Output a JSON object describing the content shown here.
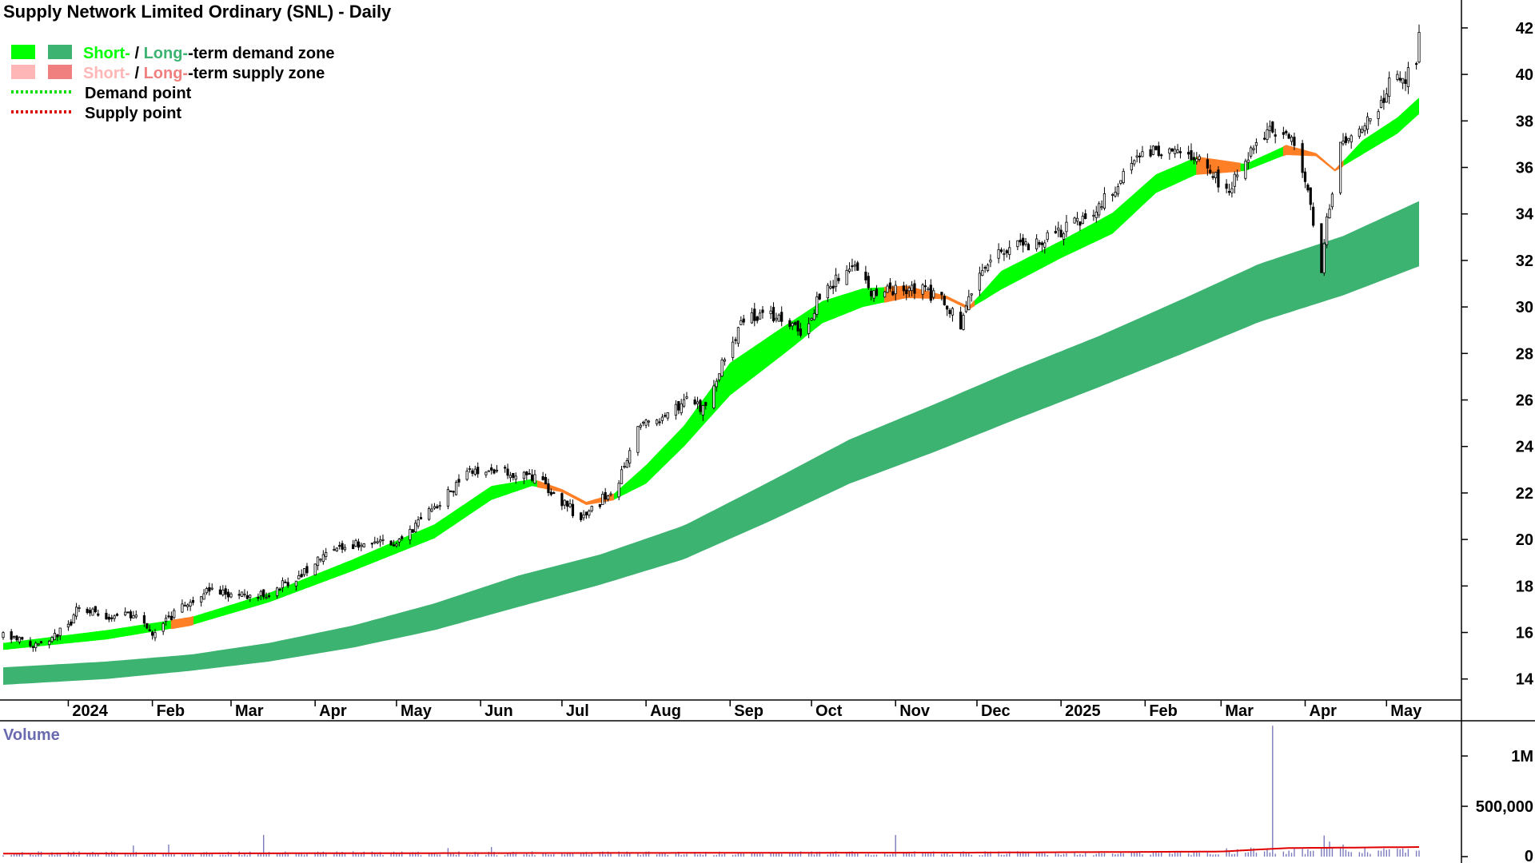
{
  "colors": {
    "short_demand": "#00ff00",
    "long_demand": "#3cb371",
    "short_supply": "#ffb6b6",
    "long_supply": "#f08080",
    "supply_ribbon": "#ff7f27",
    "candle": "#000000",
    "volume_bar": "#7b7bbd",
    "volume_avg": "#e00000",
    "volume_title": "#6a6ab0",
    "demand_point": "#00dd00",
    "supply_point": "#dd0000",
    "axis": "#000000"
  },
  "legend": [
    {
      "swatch_left": "short_demand",
      "swatch_right": "long_demand",
      "parts": [
        {
          "text": "Short-",
          "color": "short_demand"
        },
        {
          "text": " / ",
          "color": "black"
        },
        {
          "text": "Long-",
          "color": "long_demand"
        },
        {
          "text": "-term demand zone",
          "color": "black"
        }
      ]
    },
    {
      "swatch_left": "short_supply",
      "swatch_right": "long_supply",
      "parts": [
        {
          "text": "Short-",
          "color": "short_supply"
        },
        {
          "text": " / ",
          "color": "black"
        },
        {
          "text": "Long-",
          "color": "long_supply"
        },
        {
          "text": "-term supply zone",
          "color": "black"
        }
      ]
    },
    {
      "dotted": "demand_point",
      "parts": [
        {
          "text": "Demand point",
          "color": "black"
        }
      ]
    },
    {
      "dotted": "supply_point",
      "parts": [
        {
          "text": "Supply point",
          "color": "black"
        }
      ]
    }
  ],
  "chart_data": {
    "type": "candlestick",
    "title": "Supply Network Limited Ordinary (SNL) - Daily",
    "x_start": "2023-12-08",
    "x_end": "2025-05-13",
    "x_ticks": [
      {
        "label": "2024",
        "date": "2024-01-01"
      },
      {
        "label": "Feb",
        "date": "2024-02-01"
      },
      {
        "label": "Mar",
        "date": "2024-03-01"
      },
      {
        "label": "Apr",
        "date": "2024-04-01"
      },
      {
        "label": "May",
        "date": "2024-05-01"
      },
      {
        "label": "Jun",
        "date": "2024-06-01"
      },
      {
        "label": "Jul",
        "date": "2024-07-01"
      },
      {
        "label": "Aug",
        "date": "2024-08-01"
      },
      {
        "label": "Sep",
        "date": "2024-09-01"
      },
      {
        "label": "Oct",
        "date": "2024-10-01"
      },
      {
        "label": "Nov",
        "date": "2024-11-01"
      },
      {
        "label": "Dec",
        "date": "2024-12-01"
      },
      {
        "label": "2025",
        "date": "2025-01-01"
      },
      {
        "label": "Feb",
        "date": "2025-02-01"
      },
      {
        "label": "Mar",
        "date": "2025-03-01"
      },
      {
        "label": "Apr",
        "date": "2025-04-01"
      },
      {
        "label": "May",
        "date": "2025-05-01"
      }
    ],
    "y_axis": {
      "ylim": [
        13.2,
        43.2
      ],
      "ticks": [
        14,
        16,
        18,
        20,
        22,
        24,
        26,
        28,
        30,
        32,
        34,
        36,
        38,
        40,
        42
      ]
    },
    "price_path": [
      [
        "2023-12-08",
        15.9
      ],
      [
        "2023-12-20",
        15.5
      ],
      [
        "2024-01-01",
        16.2
      ],
      [
        "2024-01-05",
        17.2
      ],
      [
        "2024-01-15",
        16.6
      ],
      [
        "2024-01-25",
        16.8
      ],
      [
        "2024-02-01",
        16.0
      ],
      [
        "2024-02-10",
        16.9
      ],
      [
        "2024-02-20",
        17.8
      ],
      [
        "2024-03-01",
        17.6
      ],
      [
        "2024-03-15",
        17.7
      ],
      [
        "2024-03-25",
        18.4
      ],
      [
        "2024-04-05",
        19.4
      ],
      [
        "2024-04-15",
        19.8
      ],
      [
        "2024-05-01",
        19.9
      ],
      [
        "2024-05-10",
        20.8
      ],
      [
        "2024-05-20",
        22.0
      ],
      [
        "2024-05-28",
        23.0
      ],
      [
        "2024-06-05",
        23.1
      ],
      [
        "2024-06-20",
        22.7
      ],
      [
        "2024-06-28",
        22.0
      ],
      [
        "2024-07-08",
        20.9
      ],
      [
        "2024-07-15",
        21.6
      ],
      [
        "2024-07-22",
        22.6
      ],
      [
        "2024-07-29",
        24.8
      ],
      [
        "2024-08-08",
        25.2
      ],
      [
        "2024-08-15",
        26.0
      ],
      [
        "2024-08-22",
        25.6
      ],
      [
        "2024-08-29",
        27.5
      ],
      [
        "2024-09-05",
        29.3
      ],
      [
        "2024-09-12",
        29.7
      ],
      [
        "2024-09-20",
        29.5
      ],
      [
        "2024-09-27",
        28.8
      ],
      [
        "2024-10-03",
        30.2
      ],
      [
        "2024-10-10",
        31.2
      ],
      [
        "2024-10-17",
        31.8
      ],
      [
        "2024-10-24",
        30.5
      ],
      [
        "2024-11-01",
        30.7
      ],
      [
        "2024-11-10",
        30.8
      ],
      [
        "2024-11-18",
        30.3
      ],
      [
        "2024-11-25",
        29.3
      ],
      [
        "2024-12-01",
        31.5
      ],
      [
        "2024-12-08",
        32.5
      ],
      [
        "2024-12-20",
        32.6
      ],
      [
        "2025-01-01",
        33.3
      ],
      [
        "2025-01-10",
        33.8
      ],
      [
        "2025-01-20",
        35.0
      ],
      [
        "2025-02-01",
        36.7
      ],
      [
        "2025-02-10",
        36.8
      ],
      [
        "2025-02-20",
        36.6
      ],
      [
        "2025-03-03",
        35.0
      ],
      [
        "2025-03-10",
        36.3
      ],
      [
        "2025-03-20",
        37.7
      ],
      [
        "2025-03-28",
        37.0
      ],
      [
        "2025-04-03",
        34.5
      ],
      [
        "2025-04-07",
        31.6
      ],
      [
        "2025-04-09",
        33.9
      ],
      [
        "2025-04-14",
        36.9
      ],
      [
        "2025-04-20",
        37.8
      ],
      [
        "2025-04-28",
        38.2
      ],
      [
        "2025-05-02",
        39.7
      ],
      [
        "2025-05-08",
        39.9
      ],
      [
        "2025-05-12",
        40.5
      ],
      [
        "2025-05-13",
        41.5
      ]
    ],
    "short_zone_upper": [
      [
        "2023-12-08",
        15.55
      ],
      [
        "2024-01-15",
        16.1
      ],
      [
        "2024-02-15",
        16.65
      ],
      [
        "2024-03-15",
        17.7
      ],
      [
        "2024-04-15",
        19.15
      ],
      [
        "2024-05-15",
        20.65
      ],
      [
        "2024-06-05",
        22.3
      ],
      [
        "2024-06-20",
        22.6
      ],
      [
        "2024-07-01",
        22.15
      ],
      [
        "2024-07-10",
        21.6
      ],
      [
        "2024-07-20",
        21.95
      ],
      [
        "2024-08-01",
        23.2
      ],
      [
        "2024-08-15",
        24.9
      ],
      [
        "2024-09-01",
        27.6
      ],
      [
        "2024-09-20",
        29.1
      ],
      [
        "2024-10-05",
        30.25
      ],
      [
        "2024-10-20",
        30.8
      ],
      [
        "2024-11-05",
        30.9
      ],
      [
        "2024-11-20",
        30.45
      ],
      [
        "2024-11-28",
        30.0
      ],
      [
        "2024-12-10",
        31.55
      ],
      [
        "2025-01-01",
        32.85
      ],
      [
        "2025-01-20",
        34.05
      ],
      [
        "2025-02-05",
        35.7
      ],
      [
        "2025-02-20",
        36.45
      ],
      [
        "2025-03-10",
        36.15
      ],
      [
        "2025-03-25",
        36.95
      ],
      [
        "2025-04-05",
        36.6
      ],
      [
        "2025-04-12",
        35.9
      ],
      [
        "2025-04-22",
        37.15
      ],
      [
        "2025-05-05",
        38.15
      ],
      [
        "2025-05-13",
        39.0
      ]
    ],
    "short_zone_lower": [
      [
        "2023-12-08",
        15.25
      ],
      [
        "2024-01-15",
        15.7
      ],
      [
        "2024-02-15",
        16.3
      ],
      [
        "2024-03-15",
        17.3
      ],
      [
        "2024-04-15",
        18.65
      ],
      [
        "2024-05-15",
        20.05
      ],
      [
        "2024-06-05",
        21.7
      ],
      [
        "2024-06-20",
        22.3
      ],
      [
        "2024-07-01",
        22.05
      ],
      [
        "2024-07-10",
        21.5
      ],
      [
        "2024-07-20",
        21.7
      ],
      [
        "2024-08-01",
        22.4
      ],
      [
        "2024-08-15",
        24.0
      ],
      [
        "2024-09-01",
        26.2
      ],
      [
        "2024-09-20",
        27.9
      ],
      [
        "2024-10-05",
        29.3
      ],
      [
        "2024-10-20",
        30.0
      ],
      [
        "2024-11-05",
        30.4
      ],
      [
        "2024-11-20",
        30.35
      ],
      [
        "2024-11-28",
        29.9
      ],
      [
        "2024-12-10",
        30.75
      ],
      [
        "2025-01-01",
        32.1
      ],
      [
        "2025-01-20",
        33.15
      ],
      [
        "2025-02-05",
        34.9
      ],
      [
        "2025-02-20",
        35.7
      ],
      [
        "2025-03-10",
        35.85
      ],
      [
        "2025-03-25",
        36.55
      ],
      [
        "2025-04-05",
        36.5
      ],
      [
        "2025-04-12",
        35.85
      ],
      [
        "2025-04-22",
        36.55
      ],
      [
        "2025-05-05",
        37.45
      ],
      [
        "2025-05-13",
        38.3
      ]
    ],
    "supply_segments": [
      [
        "2024-02-08",
        "2024-02-16"
      ],
      [
        "2024-06-22",
        "2024-07-20"
      ],
      [
        "2024-10-28",
        "2024-11-30"
      ],
      [
        "2025-02-20",
        "2025-03-08"
      ],
      [
        "2025-03-24",
        "2025-04-15"
      ]
    ],
    "long_zone_upper": [
      [
        "2023-12-08",
        14.5
      ],
      [
        "2024-01-15",
        14.75
      ],
      [
        "2024-02-15",
        15.05
      ],
      [
        "2024-03-15",
        15.55
      ],
      [
        "2024-04-15",
        16.3
      ],
      [
        "2024-05-15",
        17.25
      ],
      [
        "2024-06-15",
        18.45
      ],
      [
        "2024-07-15",
        19.35
      ],
      [
        "2024-08-15",
        20.6
      ],
      [
        "2024-09-15",
        22.45
      ],
      [
        "2024-10-15",
        24.3
      ],
      [
        "2024-11-15",
        25.8
      ],
      [
        "2024-12-15",
        27.3
      ],
      [
        "2025-01-15",
        28.75
      ],
      [
        "2025-02-15",
        30.35
      ],
      [
        "2025-03-15",
        31.85
      ],
      [
        "2025-04-15",
        33.05
      ],
      [
        "2025-05-13",
        34.55
      ]
    ],
    "long_zone_lower": [
      [
        "2023-12-08",
        13.75
      ],
      [
        "2024-01-15",
        14.0
      ],
      [
        "2024-02-15",
        14.35
      ],
      [
        "2024-03-15",
        14.75
      ],
      [
        "2024-04-15",
        15.35
      ],
      [
        "2024-05-15",
        16.1
      ],
      [
        "2024-06-15",
        17.1
      ],
      [
        "2024-07-15",
        18.05
      ],
      [
        "2024-08-15",
        19.15
      ],
      [
        "2024-09-15",
        20.75
      ],
      [
        "2024-10-15",
        22.4
      ],
      [
        "2024-11-15",
        23.75
      ],
      [
        "2024-12-15",
        25.15
      ],
      [
        "2025-01-15",
        26.55
      ],
      [
        "2025-02-15",
        28.0
      ],
      [
        "2025-03-15",
        29.35
      ],
      [
        "2025-04-15",
        30.5
      ],
      [
        "2025-05-13",
        31.75
      ]
    ],
    "volume_panel": {
      "title": "Volume",
      "ylim": [
        0,
        1350000
      ],
      "ticks": [
        {
          "value": 0,
          "label": "0"
        },
        {
          "value": 500000,
          "label": "500,000"
        },
        {
          "value": 1000000,
          "label": "1M"
        }
      ],
      "baseline": 45000,
      "spikes": [
        [
          "2024-01-25",
          110000
        ],
        [
          "2024-02-07",
          120000
        ],
        [
          "2024-03-13",
          215000
        ],
        [
          "2024-05-20",
          85000
        ],
        [
          "2024-06-05",
          95000
        ],
        [
          "2024-11-01",
          215000
        ],
        [
          "2024-12-15",
          105000
        ],
        [
          "2025-03-20",
          1300000
        ],
        [
          "2025-04-08",
          210000
        ],
        [
          "2025-04-10",
          150000
        ],
        [
          "2025-04-15",
          120000
        ]
      ],
      "avg_path": [
        [
          "2023-12-08",
          30000
        ],
        [
          "2024-06-01",
          35000
        ],
        [
          "2024-12-01",
          40000
        ],
        [
          "2025-03-01",
          50000
        ],
        [
          "2025-03-25",
          85000
        ],
        [
          "2025-05-13",
          95000
        ]
      ]
    }
  }
}
